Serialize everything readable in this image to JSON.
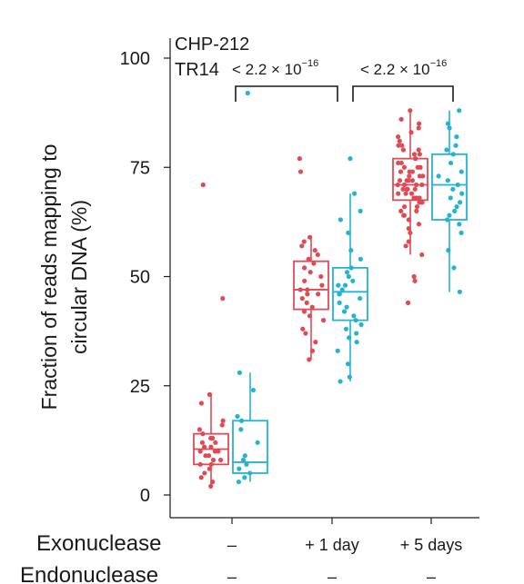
{
  "chart_data": {
    "type": "box",
    "ylabel_line1": "Fraction of reads mapping to",
    "ylabel_line2": "circular DNA (%)",
    "ylim": [
      0,
      100
    ],
    "yticks": [
      "0",
      "25",
      "50",
      "75",
      "100"
    ],
    "ytick_values": [
      0,
      25,
      50,
      75,
      100
    ],
    "categories": [
      "–",
      "+ 1 day",
      "+ 5 days"
    ],
    "row_labels": {
      "exonuclease": "Exonuclease",
      "endonuclease": "Endonuclease"
    },
    "endonuclease_values": [
      "–",
      "–",
      "–"
    ],
    "legend": [
      {
        "name": "CHP-212",
        "color": "#e04a55"
      },
      {
        "name": "TR14",
        "color": "#25b3d3"
      }
    ],
    "pvalues": [
      {
        "base": "< 2.2 × 10",
        "exp": "−16",
        "from": 0,
        "to": 1
      },
      {
        "base": "< 2.2 × 10",
        "exp": "−16",
        "from": 1,
        "to": 2
      }
    ],
    "series": [
      {
        "name": "CHP-212",
        "boxes": [
          {
            "q1": 7,
            "median": 10.5,
            "q3": 14,
            "whisker_low": 2,
            "whisker_high": 23
          },
          {
            "q1": 42.5,
            "median": 47,
            "q3": 53.5,
            "whisker_low": 31,
            "whisker_high": 59
          },
          {
            "q1": 67.5,
            "median": 71,
            "q3": 77,
            "whisker_low": 55,
            "whisker_high": 88
          }
        ],
        "points": [
          [
            2,
            3,
            4,
            5,
            6,
            7,
            7,
            8,
            8,
            9,
            9,
            10,
            10,
            10,
            11,
            11,
            12,
            12,
            13,
            13,
            14,
            15,
            16,
            17,
            21,
            23,
            45,
            71
          ],
          [
            31,
            33,
            35,
            37,
            38,
            40,
            41,
            42,
            43,
            44,
            45,
            46,
            46,
            47,
            47,
            48,
            49,
            50,
            51,
            52,
            53,
            54,
            55,
            56,
            57,
            58,
            59,
            74,
            77
          ],
          [
            44,
            49,
            50,
            55,
            57,
            58,
            60,
            61,
            62,
            63,
            63,
            64,
            64,
            65,
            65,
            66,
            66,
            67,
            67,
            67,
            68,
            68,
            68,
            69,
            69,
            69,
            70,
            70,
            70,
            70,
            71,
            71,
            71,
            71,
            72,
            72,
            72,
            72,
            73,
            73,
            73,
            74,
            74,
            74,
            75,
            75,
            75,
            76,
            76,
            77,
            77,
            78,
            78,
            79,
            79,
            80,
            80,
            81,
            82,
            83,
            84,
            85,
            86,
            88
          ]
        ]
      },
      {
        "name": "TR14",
        "boxes": [
          {
            "q1": 5,
            "median": 7.5,
            "q3": 17,
            "whisker_low": 3,
            "whisker_high": 28
          },
          {
            "q1": 40,
            "median": 46.5,
            "q3": 52,
            "whisker_low": 26,
            "whisker_high": 69
          },
          {
            "q1": 63,
            "median": 71,
            "q3": 78,
            "whisker_low": 46.5,
            "whisker_high": 88
          }
        ],
        "points": [
          [
            3,
            4,
            5,
            6,
            7,
            8,
            9,
            12,
            15,
            17,
            18,
            24,
            28,
            92
          ],
          [
            26,
            27,
            30,
            33,
            35,
            36,
            37,
            38,
            39,
            40,
            41,
            42,
            43,
            44,
            45,
            46,
            46,
            47,
            48,
            48,
            49,
            50,
            51,
            52,
            54,
            56,
            60,
            63,
            65,
            69,
            77
          ],
          [
            46.5,
            52,
            56,
            60,
            62,
            63,
            64,
            65,
            66,
            67,
            68,
            69,
            70,
            71,
            72,
            73,
            74,
            76,
            78,
            79,
            80,
            82,
            84,
            85,
            88
          ]
        ]
      }
    ]
  }
}
